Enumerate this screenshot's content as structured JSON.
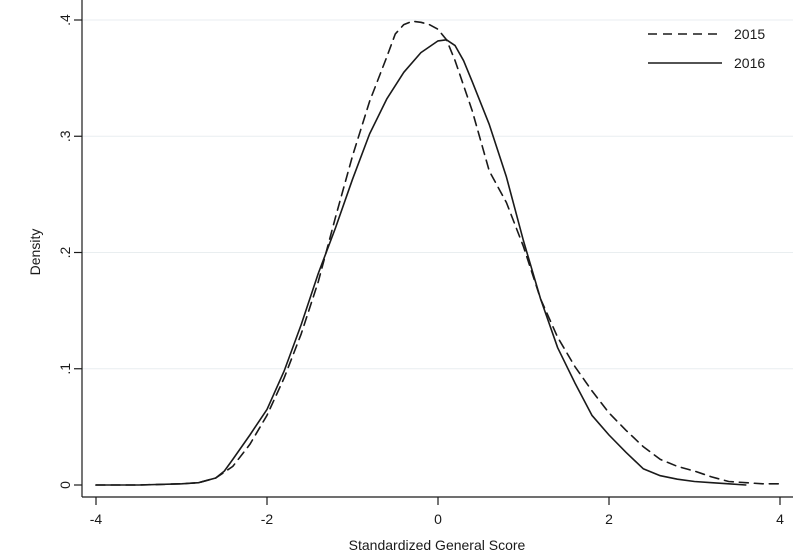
{
  "chart_data": {
    "type": "line",
    "title": "",
    "xlabel": "Standardized General Score",
    "ylabel": "Density",
    "xlim": [
      -4.05,
      4.1
    ],
    "ylim": [
      0,
      0.41
    ],
    "x_ticks": [
      -4,
      -2,
      0,
      2,
      4
    ],
    "x_tick_labels": [
      "-4",
      "-2",
      "0",
      "2",
      "4"
    ],
    "y_ticks": [
      0,
      0.1,
      0.2,
      0.3,
      0.4
    ],
    "y_tick_labels": [
      "0",
      ".1",
      ".2",
      ".3",
      ".4"
    ],
    "grid": true,
    "legend_position": "top-right",
    "series": [
      {
        "name": "2015",
        "dash": "dashed",
        "x": [
          -4.0,
          -3.5,
          -3.0,
          -2.8,
          -2.6,
          -2.4,
          -2.2,
          -2.0,
          -1.8,
          -1.6,
          -1.4,
          -1.2,
          -1.0,
          -0.8,
          -0.6,
          -0.5,
          -0.4,
          -0.3,
          -0.2,
          -0.1,
          0.0,
          0.1,
          0.2,
          0.4,
          0.6,
          0.8,
          1.0,
          1.2,
          1.4,
          1.6,
          1.8,
          2.0,
          2.2,
          2.4,
          2.6,
          2.8,
          3.0,
          3.2,
          3.4,
          3.6,
          3.8,
          4.0
        ],
        "values": [
          0.0,
          0.0,
          0.001,
          0.002,
          0.006,
          0.016,
          0.035,
          0.06,
          0.092,
          0.13,
          0.175,
          0.23,
          0.283,
          0.33,
          0.368,
          0.388,
          0.396,
          0.399,
          0.398,
          0.396,
          0.392,
          0.383,
          0.365,
          0.322,
          0.27,
          0.243,
          0.205,
          0.16,
          0.127,
          0.102,
          0.081,
          0.062,
          0.047,
          0.033,
          0.022,
          0.016,
          0.012,
          0.007,
          0.003,
          0.002,
          0.001,
          0.001
        ]
      },
      {
        "name": "2016",
        "dash": "solid",
        "x": [
          -4.0,
          -3.5,
          -3.0,
          -2.8,
          -2.6,
          -2.5,
          -2.4,
          -2.2,
          -2.0,
          -1.8,
          -1.6,
          -1.4,
          -1.2,
          -1.0,
          -0.8,
          -0.6,
          -0.4,
          -0.2,
          0.0,
          0.1,
          0.2,
          0.3,
          0.4,
          0.6,
          0.8,
          1.0,
          1.2,
          1.4,
          1.6,
          1.8,
          2.0,
          2.2,
          2.4,
          2.6,
          2.8,
          3.0,
          3.2,
          3.4,
          3.6
        ],
        "values": [
          0.0,
          0.0,
          0.001,
          0.002,
          0.006,
          0.012,
          0.022,
          0.043,
          0.065,
          0.098,
          0.138,
          0.182,
          0.221,
          0.263,
          0.302,
          0.332,
          0.355,
          0.372,
          0.382,
          0.383,
          0.378,
          0.365,
          0.347,
          0.31,
          0.265,
          0.21,
          0.16,
          0.118,
          0.088,
          0.06,
          0.043,
          0.028,
          0.014,
          0.008,
          0.005,
          0.003,
          0.002,
          0.001,
          0.0
        ]
      }
    ]
  }
}
